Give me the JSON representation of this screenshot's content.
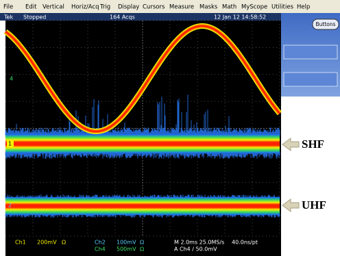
{
  "menu": [
    "File",
    "Edit",
    "Vertical",
    "Horiz/Acq",
    "Trig",
    "Display",
    "Cursors",
    "Measure",
    "Masks",
    "Math",
    "MyScope",
    "Utilities",
    "Help"
  ],
  "status": {
    "brand": "Tek",
    "state": "Stopped",
    "acquisitions": "164 Acqs",
    "timestamp": "12 Jan 12 14:58:52"
  },
  "side_panel": {
    "button": "Buttons"
  },
  "channel_markers": [
    "4",
    "1",
    "2"
  ],
  "annotations": [
    "SHF",
    "UHF"
  ],
  "readouts": {
    "ch1": {
      "name": "Ch1",
      "scale": "200mV",
      "coupling": "Ω"
    },
    "ch2": {
      "name": "Ch2",
      "scale": "100mV",
      "coupling": "Ω"
    },
    "ch4": {
      "name": "Ch4",
      "scale": "500mV",
      "coupling": "Ω"
    },
    "timebase": "M 2.0ms 25.0MS/s",
    "resolution": "40.0ns/pt",
    "trigger": "A Ch4 / 50.0mV"
  }
}
